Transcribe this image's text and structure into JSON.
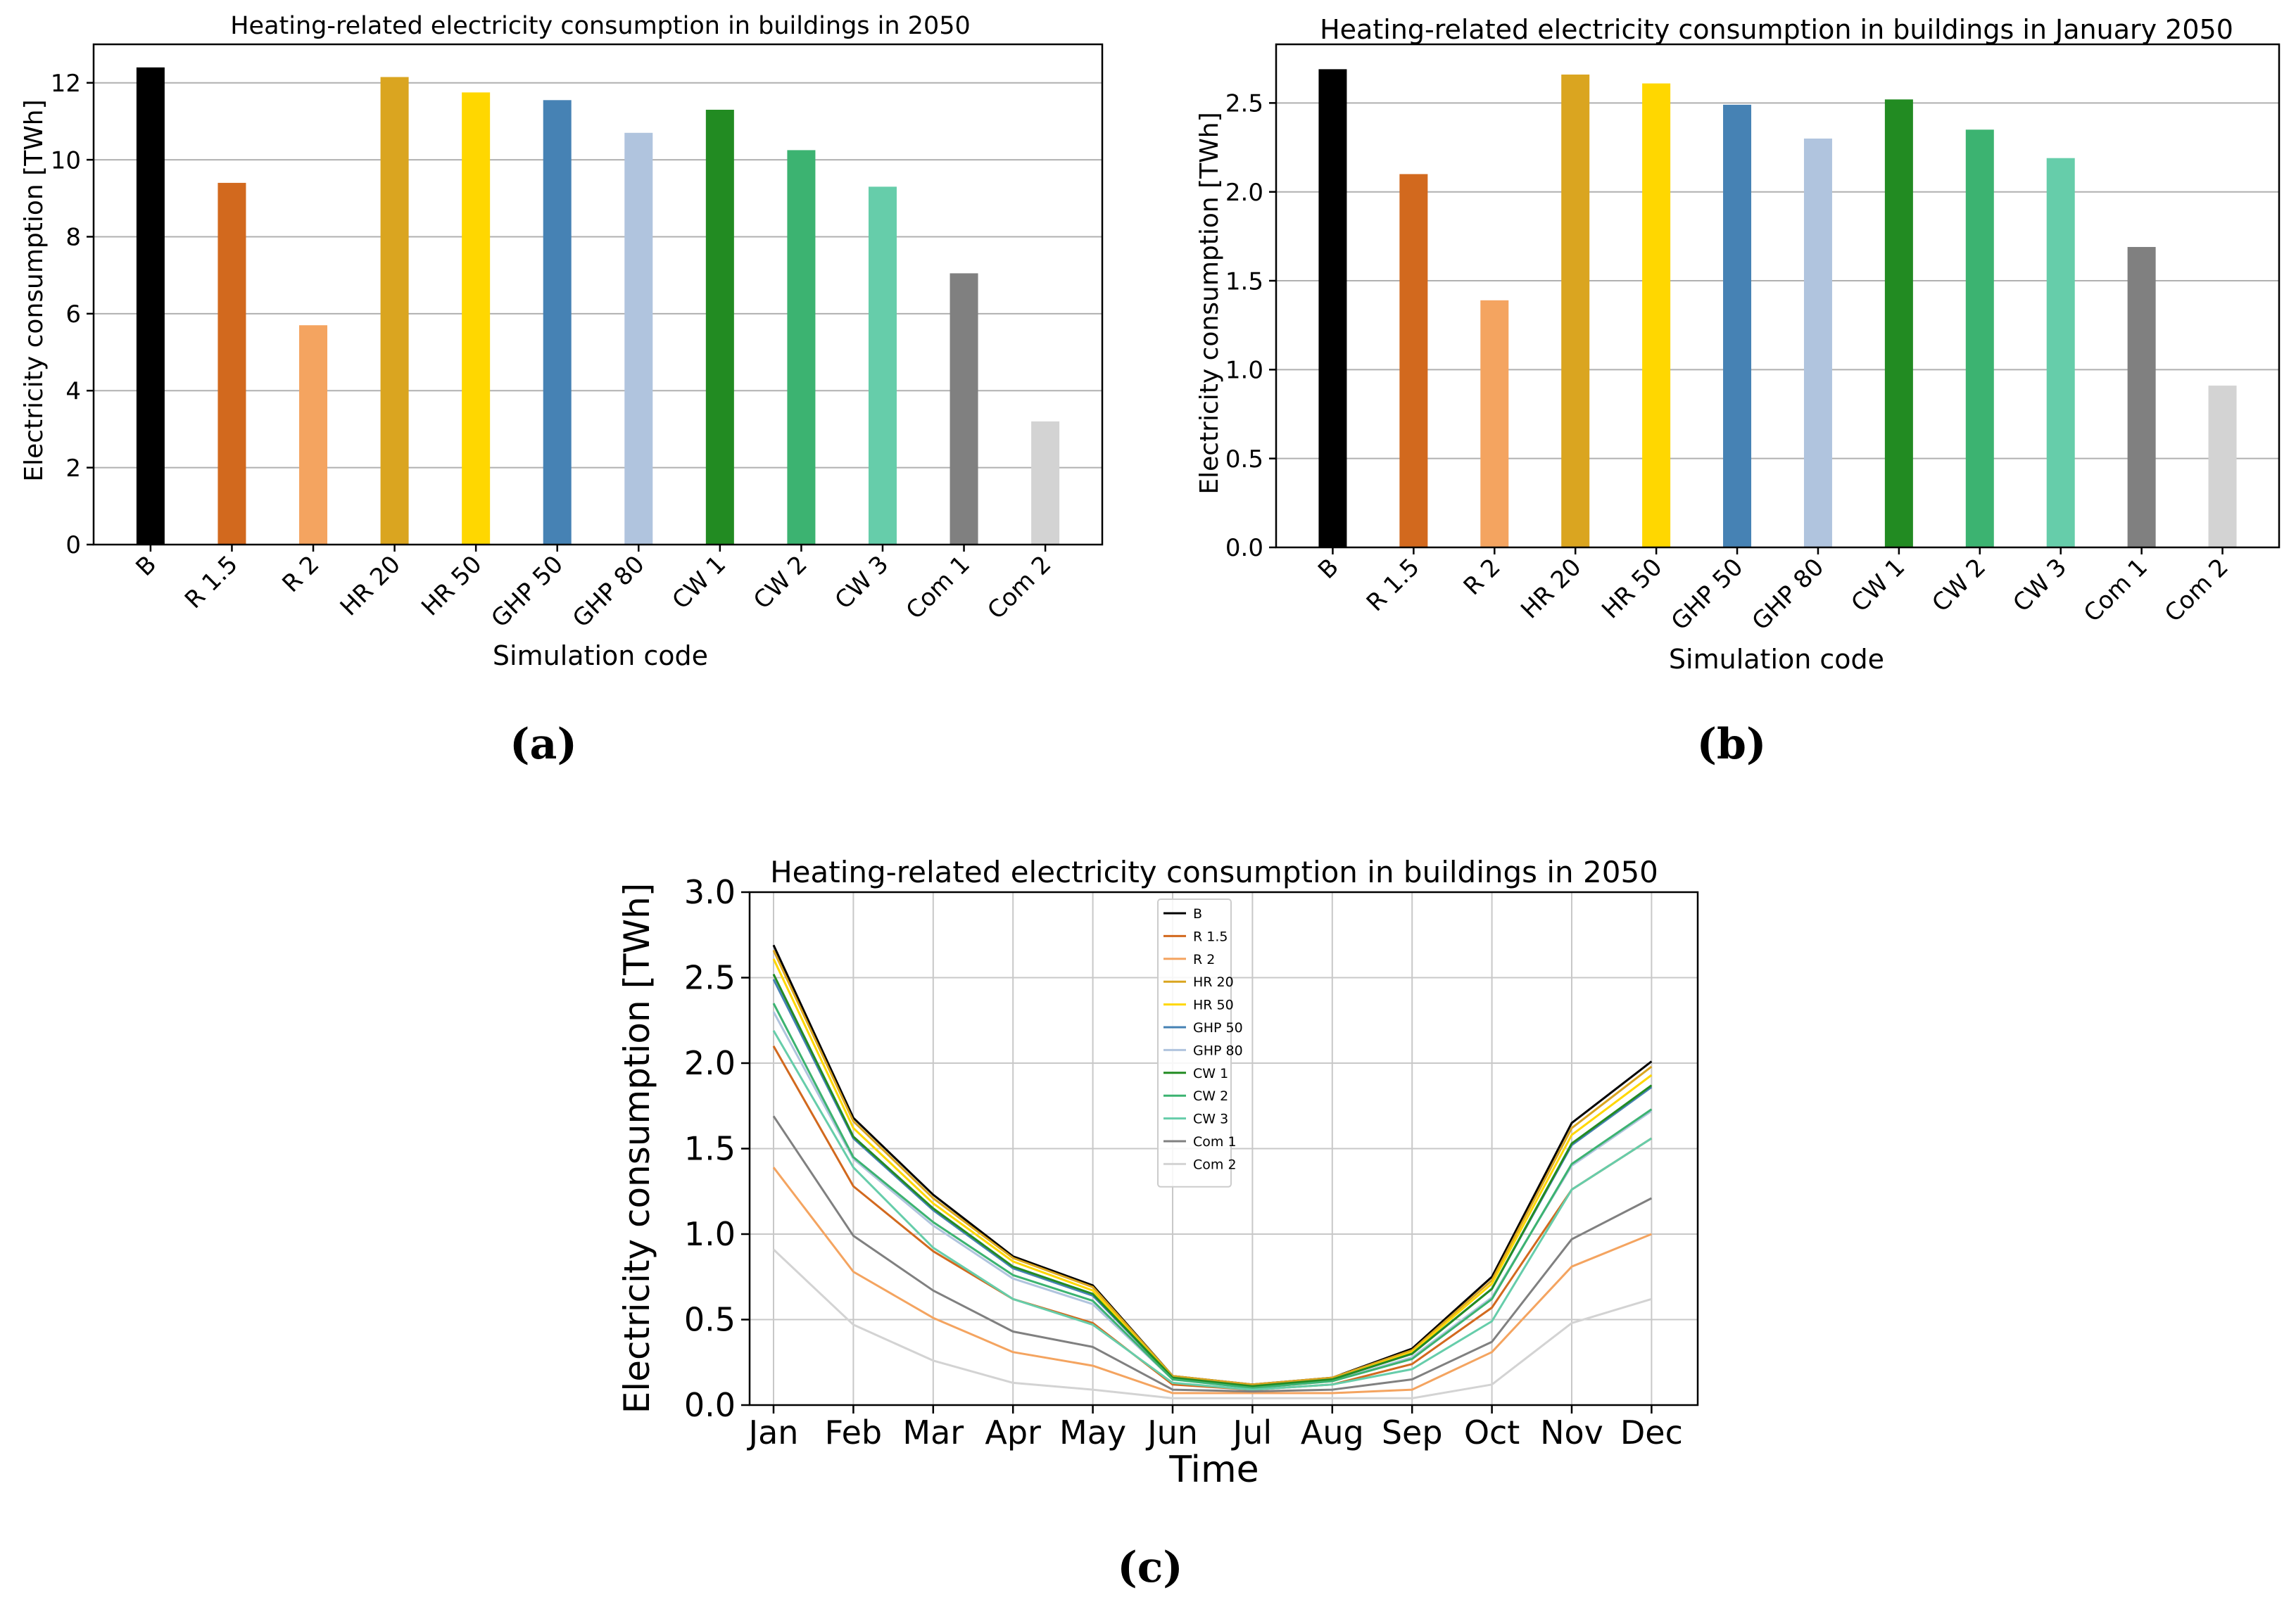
{
  "captions": {
    "a": "(a)",
    "b": "(b)",
    "c": "(c)"
  },
  "chart_data": [
    {
      "id": "a",
      "type": "bar",
      "title": "Heating-related electricity consumption in buildings in 2050",
      "xlabel": "Simulation code",
      "ylabel": "Electricity consumption [TWh]",
      "ylim": [
        0,
        13
      ],
      "yticks": [
        "0",
        "2",
        "4",
        "6",
        "8",
        "10",
        "12"
      ],
      "grid": true,
      "categories": [
        "B",
        "R 1.5",
        "R 2",
        "HR 20",
        "HR 50",
        "GHP 50",
        "GHP 80",
        "CW 1",
        "CW 2",
        "CW 3",
        "Com 1",
        "Com 2"
      ],
      "values": [
        12.4,
        9.4,
        5.7,
        12.15,
        11.75,
        11.55,
        10.7,
        11.3,
        10.25,
        9.3,
        7.05,
        3.2
      ],
      "colors": [
        "#000000",
        "#d2691e",
        "#f4a460",
        "#daa520",
        "#ffd700",
        "#4682b4",
        "#b0c4de",
        "#228b22",
        "#3cb371",
        "#66cdaa",
        "#808080",
        "#d3d3d3"
      ]
    },
    {
      "id": "b",
      "type": "bar",
      "title": "Heating-related electricity consumption in buildings in January 2050",
      "xlabel": "Simulation code",
      "ylabel": "Electricity consumption [TWh]",
      "ylim": [
        0,
        2.83
      ],
      "yticks": [
        "0.0",
        "0.5",
        "1.0",
        "1.5",
        "2.0",
        "2.5"
      ],
      "grid": true,
      "categories": [
        "B",
        "R 1.5",
        "R 2",
        "HR 20",
        "HR 50",
        "GHP 50",
        "GHP 80",
        "CW 1",
        "CW 2",
        "CW 3",
        "Com 1",
        "Com 2"
      ],
      "values": [
        2.69,
        2.1,
        1.39,
        2.66,
        2.61,
        2.49,
        2.3,
        2.52,
        2.35,
        2.19,
        1.69,
        0.91
      ],
      "colors": [
        "#000000",
        "#d2691e",
        "#f4a460",
        "#daa520",
        "#ffd700",
        "#4682b4",
        "#b0c4de",
        "#228b22",
        "#3cb371",
        "#66cdaa",
        "#808080",
        "#d3d3d3"
      ]
    },
    {
      "id": "c",
      "type": "line",
      "title": "Heating-related electricity consumption in buildings in 2050",
      "xlabel": "Time",
      "ylabel": "Electricity consumption [TWh]",
      "ylim": [
        0,
        3.0
      ],
      "yticks": [
        "0.0",
        "0.5",
        "1.0",
        "1.5",
        "2.0",
        "2.5",
        "3.0"
      ],
      "grid": true,
      "legend": "upper-center",
      "x": [
        "Jan",
        "Feb",
        "Mar",
        "Apr",
        "May",
        "Jun",
        "Jul",
        "Aug",
        "Sep",
        "Oct",
        "Nov",
        "Dec"
      ],
      "series": [
        {
          "name": "B",
          "color": "#000000",
          "values": [
            2.69,
            1.68,
            1.23,
            0.87,
            0.7,
            0.17,
            0.12,
            0.16,
            0.33,
            0.75,
            1.65,
            2.01
          ]
        },
        {
          "name": "R 1.5",
          "color": "#d2691e",
          "values": [
            2.1,
            1.28,
            0.9,
            0.62,
            0.48,
            0.12,
            0.09,
            0.12,
            0.24,
            0.57,
            1.26,
            1.56
          ]
        },
        {
          "name": "R 2",
          "color": "#f4a460",
          "values": [
            1.39,
            0.78,
            0.51,
            0.31,
            0.23,
            0.07,
            0.07,
            0.07,
            0.09,
            0.31,
            0.81,
            1.0
          ]
        },
        {
          "name": "HR 20",
          "color": "#daa520",
          "values": [
            2.66,
            1.66,
            1.21,
            0.86,
            0.69,
            0.17,
            0.12,
            0.16,
            0.32,
            0.73,
            1.62,
            1.98
          ]
        },
        {
          "name": "HR 50",
          "color": "#ffd700",
          "values": [
            2.61,
            1.62,
            1.18,
            0.84,
            0.67,
            0.16,
            0.11,
            0.15,
            0.31,
            0.71,
            1.58,
            1.93
          ]
        },
        {
          "name": "GHP 50",
          "color": "#4682b4",
          "values": [
            2.49,
            1.56,
            1.14,
            0.8,
            0.64,
            0.16,
            0.11,
            0.15,
            0.3,
            0.68,
            1.52,
            1.86
          ]
        },
        {
          "name": "GHP 80",
          "color": "#b0c4de",
          "values": [
            2.3,
            1.44,
            1.05,
            0.74,
            0.59,
            0.15,
            0.1,
            0.14,
            0.28,
            0.63,
            1.4,
            1.72
          ]
        },
        {
          "name": "CW 1",
          "color": "#228b22",
          "values": [
            2.52,
            1.57,
            1.15,
            0.81,
            0.65,
            0.16,
            0.11,
            0.15,
            0.3,
            0.68,
            1.53,
            1.87
          ]
        },
        {
          "name": "CW 2",
          "color": "#3cb371",
          "values": [
            2.35,
            1.45,
            1.07,
            0.76,
            0.61,
            0.15,
            0.1,
            0.14,
            0.27,
            0.62,
            1.41,
            1.73
          ]
        },
        {
          "name": "CW 3",
          "color": "#66cdaa",
          "values": [
            2.19,
            1.39,
            0.92,
            0.62,
            0.47,
            0.13,
            0.09,
            0.12,
            0.21,
            0.49,
            1.26,
            1.56
          ]
        },
        {
          "name": "Com 1",
          "color": "#808080",
          "values": [
            1.69,
            0.99,
            0.67,
            0.43,
            0.34,
            0.09,
            0.08,
            0.09,
            0.15,
            0.37,
            0.97,
            1.21
          ]
        },
        {
          "name": "Com 2",
          "color": "#d3d3d3",
          "values": [
            0.91,
            0.47,
            0.26,
            0.13,
            0.09,
            0.04,
            0.04,
            0.04,
            0.04,
            0.12,
            0.48,
            0.62
          ]
        }
      ]
    }
  ]
}
